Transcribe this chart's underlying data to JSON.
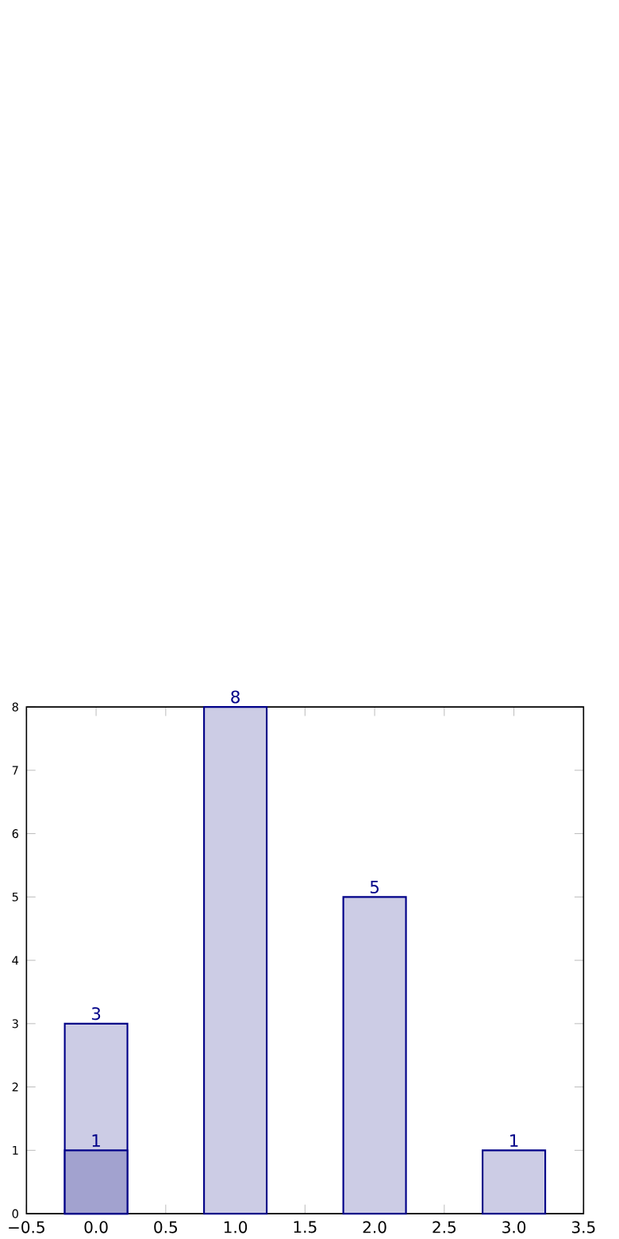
{
  "chart_data": {
    "type": "bar",
    "series": [
      {
        "x": [
          0,
          1,
          2,
          3
        ],
        "values": [
          3,
          8,
          5,
          1
        ],
        "color": "#ccccE5"
      },
      {
        "x": [
          0
        ],
        "values": [
          1
        ],
        "color": "#a2a2cf"
      }
    ],
    "xlim": [
      -0.5,
      3.5
    ],
    "xticks": [
      {
        "value": -0.5,
        "label": "−0.5"
      },
      {
        "value": 0,
        "label": "0.0"
      },
      0.5,
      {
        "value": 1,
        "label": "1.0"
      },
      1.5,
      {
        "value": 2,
        "label": "2.0"
      },
      2.5,
      {
        "value": 3,
        "label": "3.0"
      },
      3.5
    ],
    "ylim": [
      0,
      8
    ],
    "yticks": [
      0,
      1,
      2,
      3,
      4,
      5,
      6,
      7,
      8
    ],
    "data_labels": true
  }
}
